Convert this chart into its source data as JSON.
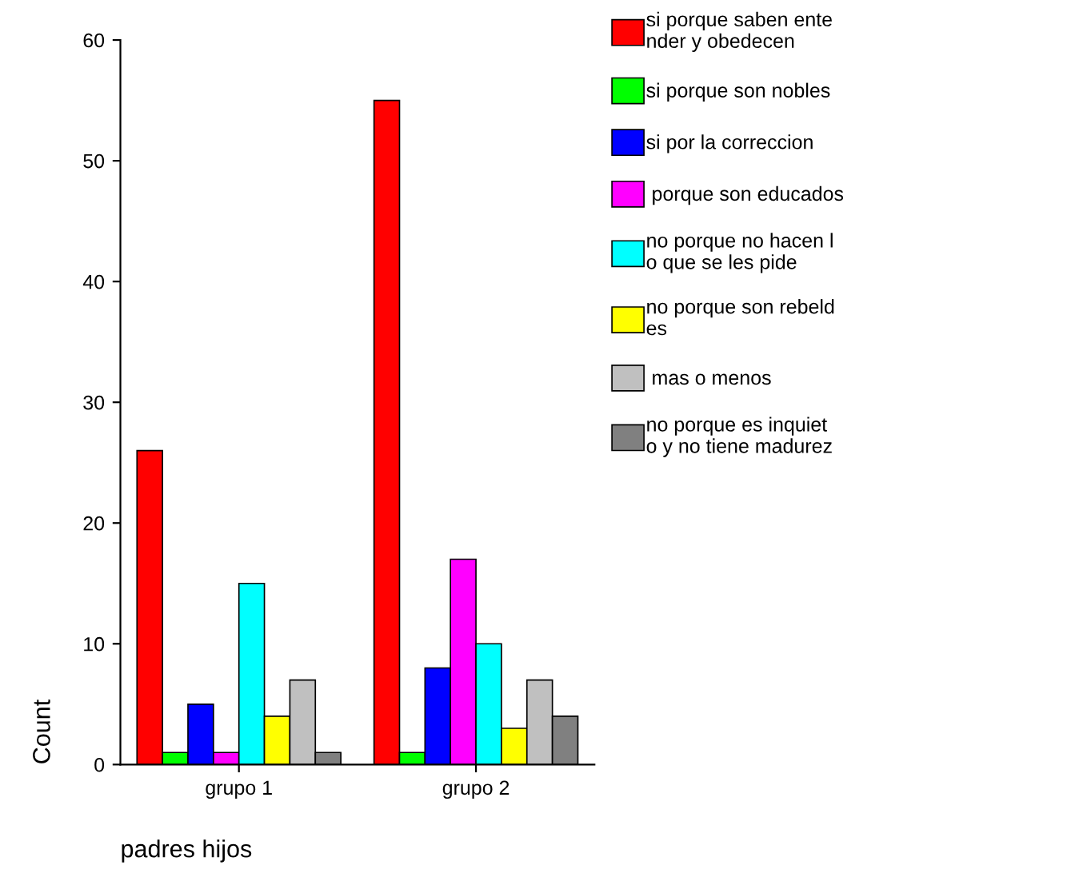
{
  "chart_data": {
    "type": "bar",
    "xlabel": "padres hijos",
    "ylabel": "Count",
    "categories": [
      "grupo 1",
      "grupo 2"
    ],
    "series": [
      {
        "name": "si porque saben ente\nnder y obedecen",
        "color": "#ff0000",
        "values": [
          26,
          55
        ]
      },
      {
        "name": "si porque son nobles",
        "color": "#00ff00",
        "values": [
          1,
          1
        ]
      },
      {
        "name": "si por la correccion",
        "color": "#0000ff",
        "values": [
          5,
          8
        ]
      },
      {
        "name": " porque son educados",
        "color": "#ff00ff",
        "values": [
          1,
          17
        ]
      },
      {
        "name": "no porque no hacen l\no que se les pide",
        "color": "#00ffff",
        "values": [
          15,
          10
        ]
      },
      {
        "name": "no porque son rebeld\nes",
        "color": "#ffff00",
        "values": [
          4,
          3
        ]
      },
      {
        "name": " mas o menos",
        "color": "#c0c0c0",
        "values": [
          7,
          7
        ]
      },
      {
        "name": "no porque es inquiet\no y no tiene madurez",
        "color": "#808080",
        "values": [
          1,
          4
        ]
      }
    ],
    "ylim": [
      0,
      60
    ],
    "yticks": [
      0,
      10,
      20,
      30,
      40,
      50,
      60
    ],
    "grid": false,
    "legend": "right"
  }
}
